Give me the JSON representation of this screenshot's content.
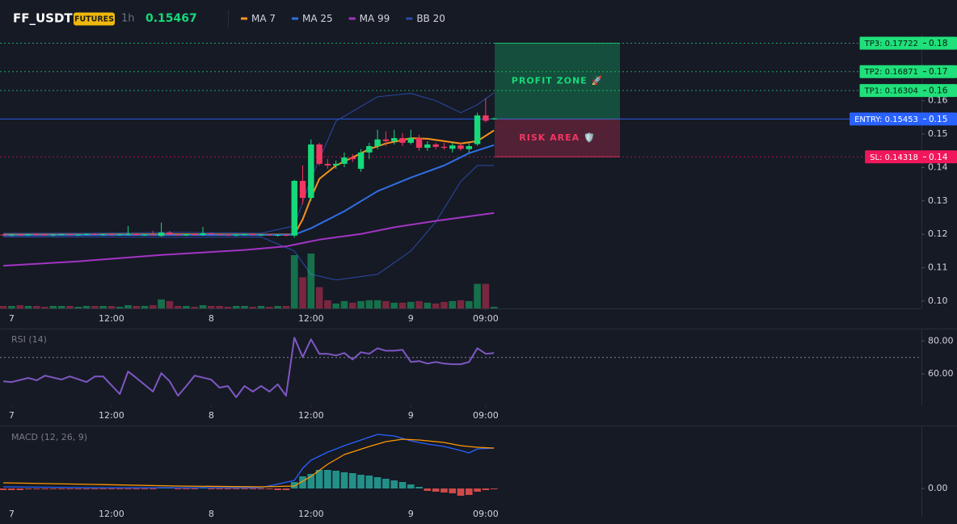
{
  "chart_data": [
    {
      "type": "candlestick",
      "title": "FF_USDT",
      "badge": "FUTURES",
      "interval": "1h",
      "last_price": 0.15467,
      "xlim": [
        -1.4,
        109.4
      ],
      "xticks": [
        {
          "value": 0,
          "label": "7"
        },
        {
          "value": 12,
          "label": "12:00"
        },
        {
          "value": 24,
          "label": "8"
        },
        {
          "value": 36,
          "label": "12:00"
        },
        {
          "value": 48,
          "label": "9"
        },
        {
          "value": 57,
          "label": "09:00"
        }
      ],
      "ylim": [
        0.0978,
        0.18
      ],
      "yticks": [
        {
          "value": 0.1,
          "label": "0.10"
        },
        0.11,
        0.12,
        0.13,
        0.14,
        0.15,
        0.16
      ],
      "up_color": "#16d97a",
      "down_color": "#f23661",
      "x": [
        -1,
        0,
        1,
        2,
        3,
        4,
        5,
        6,
        7,
        8,
        9,
        10,
        11,
        12,
        13,
        14,
        15,
        16,
        17,
        18,
        19,
        20,
        21,
        22,
        23,
        24,
        25,
        26,
        27,
        28,
        29,
        30,
        31,
        32,
        33,
        34,
        35,
        36,
        37,
        38,
        39,
        40,
        41,
        42,
        43,
        44,
        45,
        46,
        47,
        48,
        49,
        50,
        51,
        52,
        53,
        54,
        55,
        56,
        57,
        58
      ],
      "open": [
        0.1199,
        0.1197,
        0.1199,
        0.1198,
        0.12,
        0.1199,
        0.1197,
        0.1199,
        0.12,
        0.1198,
        0.1199,
        0.1201,
        0.1199,
        0.12,
        0.1198,
        0.12,
        0.1201,
        0.1198,
        0.1199,
        0.1195,
        0.1205,
        0.1199,
        0.1197,
        0.12,
        0.1198,
        0.1203,
        0.12,
        0.1199,
        0.1197,
        0.1199,
        0.12,
        0.1198,
        0.1199,
        0.1197,
        0.1198,
        0.1196,
        0.136,
        0.1309,
        0.1469,
        0.1411,
        0.1406,
        0.1411,
        0.143,
        0.1396,
        0.1445,
        0.1464,
        0.1484,
        0.1479,
        0.1488,
        0.1474,
        0.1488,
        0.1459,
        0.1469,
        0.1462,
        0.1456,
        0.1466,
        0.1455,
        0.147,
        0.1556,
        0.1545
      ],
      "high": [
        0.1201,
        0.12,
        0.1202,
        0.1201,
        0.1203,
        0.1201,
        0.12,
        0.1202,
        0.1202,
        0.1201,
        0.1203,
        0.1203,
        0.1202,
        0.1203,
        0.1201,
        0.1225,
        0.1204,
        0.1201,
        0.121,
        0.1235,
        0.121,
        0.1202,
        0.1201,
        0.1203,
        0.1222,
        0.1205,
        0.1202,
        0.1201,
        0.12,
        0.1202,
        0.1203,
        0.1201,
        0.1202,
        0.12,
        0.12,
        0.1363,
        0.1406,
        0.1484,
        0.1474,
        0.1425,
        0.1421,
        0.1445,
        0.144,
        0.1455,
        0.1474,
        0.1513,
        0.1508,
        0.1513,
        0.1503,
        0.1513,
        0.1498,
        0.1479,
        0.1474,
        0.1474,
        0.1474,
        0.1474,
        0.1474,
        0.1564,
        0.1607,
        0.1549
      ],
      "low": [
        0.1195,
        0.1194,
        0.1196,
        0.1195,
        0.1197,
        0.1196,
        0.1194,
        0.1197,
        0.1197,
        0.1195,
        0.1197,
        0.1198,
        0.1196,
        0.1197,
        0.1196,
        0.1197,
        0.1197,
        0.1195,
        0.1196,
        0.1193,
        0.1197,
        0.1196,
        0.1195,
        0.1197,
        0.1196,
        0.1198,
        0.1197,
        0.1195,
        0.1194,
        0.1196,
        0.1197,
        0.1195,
        0.1196,
        0.1193,
        0.1194,
        0.119,
        0.129,
        0.13,
        0.1406,
        0.1396,
        0.1396,
        0.1401,
        0.1416,
        0.1387,
        0.1425,
        0.1455,
        0.1464,
        0.1469,
        0.1464,
        0.1469,
        0.145,
        0.145,
        0.1455,
        0.1453,
        0.1445,
        0.145,
        0.1445,
        0.1465,
        0.1535,
        0.1543
      ],
      "close": [
        0.1197,
        0.1199,
        0.1198,
        0.12,
        0.1199,
        0.1197,
        0.1199,
        0.12,
        0.1198,
        0.1199,
        0.1201,
        0.1199,
        0.12,
        0.1198,
        0.12,
        0.1201,
        0.1198,
        0.1199,
        0.1197,
        0.1205,
        0.1199,
        0.1197,
        0.12,
        0.1198,
        0.1203,
        0.12,
        0.1199,
        0.1197,
        0.1199,
        0.12,
        0.1198,
        0.1199,
        0.1197,
        0.1198,
        0.1196,
        0.136,
        0.1309,
        0.1469,
        0.1411,
        0.1406,
        0.1411,
        0.143,
        0.1425,
        0.1445,
        0.1464,
        0.1484,
        0.1479,
        0.1488,
        0.1474,
        0.1488,
        0.1459,
        0.1469,
        0.1462,
        0.1459,
        0.1466,
        0.1456,
        0.1464,
        0.1556,
        0.154,
        0.1547
      ],
      "volume": [
        3,
        3,
        4,
        3,
        3,
        2,
        3,
        3,
        3,
        2,
        3,
        3,
        3,
        3,
        2,
        4,
        3,
        3,
        4,
        11,
        9,
        3,
        3,
        2,
        4,
        3,
        3,
        2,
        3,
        3,
        2,
        3,
        2,
        3,
        3,
        65,
        38,
        67,
        26,
        10,
        6,
        9,
        7,
        9,
        10,
        10,
        9,
        7,
        7,
        8,
        9,
        7,
        6,
        8,
        9,
        10,
        9,
        30,
        30,
        2
      ],
      "series": [
        {
          "name": "MA 7",
          "color": "#f7931a",
          "x": [
            -1,
            10,
            20,
            30,
            34,
            35,
            36,
            37,
            39,
            41,
            43,
            45,
            47,
            48,
            50,
            52,
            54,
            56,
            58
          ],
          "values": [
            0.1199,
            0.1199,
            0.12,
            0.1199,
            0.12,
            0.1245,
            0.1309,
            0.1366,
            0.1406,
            0.143,
            0.1455,
            0.1472,
            0.1482,
            0.1488,
            0.1486,
            0.1479,
            0.1472,
            0.1479,
            0.1511
          ]
        },
        {
          "name": "MA 25",
          "color": "#2f6fe4",
          "x": [
            -1,
            10,
            20,
            30,
            34,
            36,
            40,
            44,
            48,
            52,
            55,
            58
          ],
          "values": [
            0.1197,
            0.1198,
            0.1198,
            0.1198,
            0.1199,
            0.1218,
            0.1269,
            0.1329,
            0.137,
            0.1406,
            0.1443,
            0.1467
          ]
        },
        {
          "name": "MA 99",
          "color": "#a235c4",
          "x": [
            -1,
            8,
            18,
            28,
            33,
            37,
            42,
            46,
            51,
            58
          ],
          "values": [
            0.1106,
            0.1119,
            0.1138,
            0.1153,
            0.1164,
            0.1184,
            0.1201,
            0.1221,
            0.124,
            0.1264
          ]
        }
      ],
      "bands": [
        {
          "name": "BB 20",
          "color": "#2a4ba8",
          "x": [
            -1,
            10,
            20,
            30,
            34,
            36,
            39,
            44,
            48,
            51,
            54,
            56,
            58
          ],
          "upper": [
            0.1203,
            0.1203,
            0.1206,
            0.1203,
            0.1225,
            0.1367,
            0.1539,
            0.1612,
            0.1622,
            0.16,
            0.1564,
            0.1588,
            0.1624
          ],
          "lower": [
            0.1192,
            0.1192,
            0.1191,
            0.1192,
            0.115,
            0.108,
            0.1063,
            0.108,
            0.115,
            0.1237,
            0.1358,
            0.1406,
            0.1406
          ]
        }
      ],
      "levels": [
        {
          "label": "TP3: 0.17722",
          "value": 0.17722,
          "axis_label": "0.18",
          "color": "#1fe07a",
          "text_color": "#0b1a12",
          "style": "dotted"
        },
        {
          "label": "TP2: 0.16871",
          "value": 0.16871,
          "axis_label": "0.17",
          "color": "#1fe07a",
          "text_color": "#0b1a12",
          "style": "dotted"
        },
        {
          "label": "TP1: 0.16304",
          "value": 0.16304,
          "axis_label": "0.16",
          "color": "#1fe07a",
          "text_color": "#0b1a12",
          "style": "dotted"
        },
        {
          "label": "ENTRY: 0.15453",
          "value": 0.15453,
          "axis_label": "0.15",
          "color": "#2962ff",
          "text_color": "#ffffff",
          "style": "solid"
        },
        {
          "label": "SL: 0.14318",
          "value": 0.14318,
          "axis_label": "0.14",
          "color": "#f0175a",
          "text_color": "#ffffff",
          "style": "dotted"
        }
      ],
      "zones": [
        {
          "label": "PROFIT ZONE 🚀",
          "color": "#16d97a"
        },
        {
          "label": "RISK AREA 🛡️",
          "color": "#f23661"
        }
      ]
    },
    {
      "type": "line",
      "title": "RSI (14)",
      "color": "#7e57c2",
      "x": [
        -1,
        0,
        2,
        3,
        4,
        6,
        7,
        9,
        10,
        11,
        13,
        14,
        15,
        17,
        18,
        19,
        20,
        21,
        22,
        24,
        25,
        26,
        27,
        28,
        29,
        30,
        31,
        32,
        33,
        34,
        35,
        36,
        37,
        38,
        39,
        40,
        41,
        42,
        43,
        44,
        45,
        46,
        47,
        48,
        49,
        50,
        51,
        52,
        53,
        54,
        55,
        56,
        57,
        58
      ],
      "values": [
        55.6,
        55.1,
        57.6,
        56.1,
        59,
        56.6,
        58.5,
        55.1,
        58.5,
        58.5,
        47.8,
        61.5,
        57.6,
        49.3,
        60.5,
        55.6,
        46.8,
        52.7,
        59,
        56.6,
        51.7,
        52.7,
        45.9,
        52.7,
        49.3,
        52.7,
        49.3,
        53.7,
        46.8,
        82,
        70.2,
        81,
        72.2,
        72.2,
        71.2,
        72.7,
        68.8,
        73.2,
        72.2,
        75.6,
        74.1,
        74.1,
        74.6,
        67.3,
        67.8,
        66.3,
        67.3,
        66.3,
        65.9,
        65.9,
        67.3,
        75.6,
        72.2,
        72.7
      ],
      "ylim": [
        41,
        87
      ],
      "yticks": [
        {
          "value": 80,
          "label": "80.00"
        },
        {
          "value": 60,
          "label": "60.00"
        }
      ],
      "hline": 70
    },
    {
      "type": "macd",
      "title": "MACD (12, 26, 9)",
      "up_color": "#26a69a",
      "down_color": "#ef5350",
      "x": [
        -1,
        0,
        1,
        2,
        3,
        4,
        5,
        6,
        7,
        8,
        9,
        10,
        11,
        12,
        13,
        14,
        15,
        16,
        17,
        18,
        19,
        20,
        21,
        22,
        23,
        24,
        25,
        26,
        27,
        28,
        29,
        30,
        31,
        32,
        33,
        34,
        35,
        36,
        37,
        38,
        39,
        40,
        41,
        42,
        43,
        44,
        45,
        46,
        47,
        48,
        49,
        50,
        51,
        52,
        53,
        54,
        55,
        56,
        57,
        58
      ],
      "histogram": [
        -0.0002,
        -0.0002,
        -0.0002,
        -0.0001,
        -0.0001,
        -0.0001,
        -0.0001,
        -0.0001,
        -0.0001,
        -0.0001,
        -0.0001,
        -0.0001,
        -0.0001,
        -0.0001,
        -0.0001,
        -0.0001,
        -0.0001,
        -0.0001,
        -0.0001,
        0.0001,
        0.0001,
        -0.0001,
        -0.0001,
        -0.0001,
        0.0001,
        -0.0001,
        -0.0001,
        -0.0001,
        -0.0001,
        -0.0001,
        -0.0001,
        -0.0001,
        -0.0001,
        -0.0002,
        -0.0002,
        0.0008,
        0.0015,
        0.0018,
        0.0023,
        0.0023,
        0.0022,
        0.002,
        0.0019,
        0.0017,
        0.0016,
        0.0014,
        0.0012,
        0.001,
        0.0008,
        0.0005,
        0.0002,
        -0.0003,
        -0.0004,
        -0.0005,
        -0.0006,
        -0.0009,
        -0.0008,
        -0.0004,
        -0.0002,
        -0.0001
      ],
      "series": [
        {
          "color": "#2962ff",
          "x": [
            -1,
            10,
            20,
            30,
            34,
            35,
            36,
            38,
            40,
            42,
            44,
            46,
            48,
            50,
            52,
            54,
            55,
            56,
            58
          ],
          "values": [
            0.0002,
            0.0001,
            0.0001,
            0.0001,
            0.001,
            0.0025,
            0.0035,
            0.0045,
            0.0053,
            0.006,
            0.0067,
            0.0065,
            0.0059,
            0.0055,
            0.0052,
            0.0047,
            0.0044,
            0.0049,
            0.005
          ]
        },
        {
          "color": "#ff9800",
          "x": [
            -1,
            10,
            20,
            30,
            34,
            36,
            38,
            40,
            43,
            45,
            47,
            49,
            52,
            54,
            56,
            58
          ],
          "values": [
            0.0007,
            0.0005,
            0.0003,
            0.0002,
            0.0003,
            0.0015,
            0.003,
            0.0042,
            0.0052,
            0.0058,
            0.0061,
            0.006,
            0.0057,
            0.0053,
            0.0051,
            0.005
          ]
        }
      ],
      "ylim": [
        -0.0035,
        0.0077
      ],
      "yticks": [
        {
          "value": 0,
          "label": "0.00"
        }
      ]
    }
  ]
}
